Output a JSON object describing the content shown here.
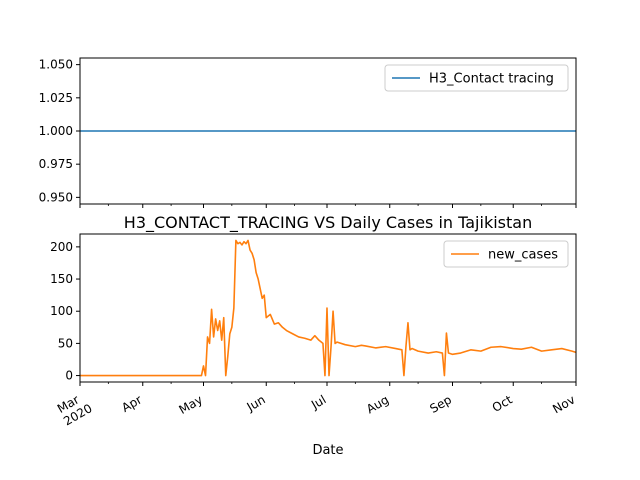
{
  "chart_data": [
    {
      "type": "line",
      "title": "",
      "xlabel": "",
      "ylabel": "",
      "ylim": [
        0.945,
        1.055
      ],
      "yticks": [
        0.95,
        0.975,
        1.0,
        1.025,
        1.05
      ],
      "ytick_labels": [
        "0.950",
        "0.975",
        "1.000",
        "1.025",
        "1.050"
      ],
      "grid": false,
      "legend": "upper right",
      "series": [
        {
          "name": "H3_Contact tracing",
          "color": "#1f77b4",
          "x": [
            "2020-03-01",
            "2020-11-01"
          ],
          "y": [
            1.0,
            1.0
          ]
        }
      ]
    },
    {
      "type": "line",
      "title": "H3_CONTACT_TRACING VS Daily Cases in Tajikistan",
      "xlabel": "Date",
      "ylabel": "",
      "ylim": [
        -10,
        220
      ],
      "yticks": [
        0,
        50,
        100,
        150,
        200
      ],
      "ytick_labels": [
        "0",
        "50",
        "100",
        "150",
        "200"
      ],
      "xlim": [
        "2020-03-01",
        "2020-11-01"
      ],
      "xticks": [
        "2020-03-01",
        "2020-04-01",
        "2020-05-01",
        "2020-06-01",
        "2020-07-01",
        "2020-08-01",
        "2020-09-01",
        "2020-10-01",
        "2020-11-01"
      ],
      "xtick_labels": [
        "Mar\n2020",
        "Apr",
        "May",
        "Jun",
        "Jul",
        "Aug",
        "Sep",
        "Oct",
        "Nov"
      ],
      "grid": false,
      "legend": "upper right",
      "series": [
        {
          "name": "new_cases",
          "color": "#ff7f0e",
          "x": [
            "2020-03-01",
            "2020-04-25",
            "2020-04-30",
            "2020-05-01",
            "2020-05-02",
            "2020-05-03",
            "2020-05-04",
            "2020-05-05",
            "2020-05-06",
            "2020-05-07",
            "2020-05-08",
            "2020-05-09",
            "2020-05-10",
            "2020-05-11",
            "2020-05-12",
            "2020-05-13",
            "2020-05-14",
            "2020-05-15",
            "2020-05-16",
            "2020-05-17",
            "2020-05-18",
            "2020-05-19",
            "2020-05-20",
            "2020-05-21",
            "2020-05-22",
            "2020-05-23",
            "2020-05-24",
            "2020-05-25",
            "2020-05-26",
            "2020-05-27",
            "2020-05-28",
            "2020-05-29",
            "2020-05-30",
            "2020-05-31",
            "2020-06-01",
            "2020-06-03",
            "2020-06-05",
            "2020-06-07",
            "2020-06-09",
            "2020-06-11",
            "2020-06-14",
            "2020-06-17",
            "2020-06-20",
            "2020-06-23",
            "2020-06-25",
            "2020-06-27",
            "2020-06-29",
            "2020-06-30",
            "2020-07-01",
            "2020-07-02",
            "2020-07-03",
            "2020-07-04",
            "2020-07-05",
            "2020-07-06",
            "2020-07-10",
            "2020-07-15",
            "2020-07-18",
            "2020-07-20",
            "2020-07-25",
            "2020-07-30",
            "2020-08-04",
            "2020-08-07",
            "2020-08-08",
            "2020-08-09",
            "2020-08-10",
            "2020-08-11",
            "2020-08-12",
            "2020-08-15",
            "2020-08-20",
            "2020-08-24",
            "2020-08-27",
            "2020-08-28",
            "2020-08-29",
            "2020-08-30",
            "2020-09-01",
            "2020-09-05",
            "2020-09-10",
            "2020-09-15",
            "2020-09-20",
            "2020-09-25",
            "2020-10-01",
            "2020-10-05",
            "2020-10-10",
            "2020-10-15",
            "2020-10-20",
            "2020-10-25",
            "2020-10-30",
            "2020-11-01"
          ],
          "y": [
            0,
            0,
            0,
            15,
            0,
            60,
            50,
            103,
            60,
            88,
            70,
            85,
            55,
            90,
            0,
            30,
            65,
            75,
            105,
            210,
            205,
            207,
            203,
            208,
            205,
            210,
            195,
            190,
            180,
            160,
            150,
            135,
            120,
            125,
            90,
            95,
            80,
            82,
            75,
            70,
            65,
            60,
            58,
            55,
            62,
            55,
            50,
            0,
            105,
            0,
            45,
            100,
            50,
            52,
            48,
            45,
            47,
            46,
            43,
            45,
            42,
            40,
            0,
            45,
            82,
            40,
            42,
            38,
            35,
            37,
            35,
            0,
            66,
            35,
            33,
            35,
            40,
            38,
            44,
            45,
            42,
            41,
            44,
            38,
            40,
            42,
            38,
            36
          ]
        }
      ]
    }
  ]
}
